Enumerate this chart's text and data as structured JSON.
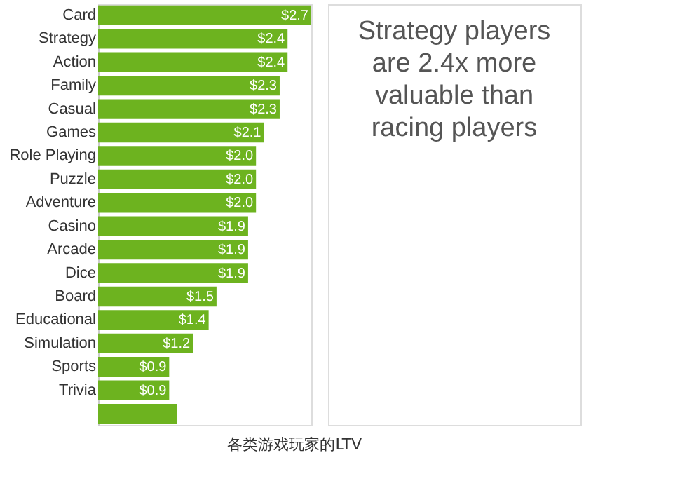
{
  "chart_data": {
    "type": "bar",
    "orientation": "horizontal",
    "categories": [
      "Card",
      "Strategy",
      "Action",
      "Family",
      "Casual",
      "Games",
      "Role Playing",
      "Puzzle",
      "Adventure",
      "Casino",
      "Arcade",
      "Dice",
      "Board",
      "Educational",
      "Simulation",
      "Sports",
      "Trivia",
      null
    ],
    "values": [
      2.7,
      2.4,
      2.4,
      2.3,
      2.3,
      2.1,
      2.0,
      2.0,
      2.0,
      1.9,
      1.9,
      1.9,
      1.5,
      1.4,
      1.2,
      0.9,
      0.9,
      1.0
    ],
    "value_labels": [
      "$2.7",
      "$2.4",
      "$2.4",
      "$2.3",
      "$2.3",
      "$2.1",
      "$2.0",
      "$2.0",
      "$2.0",
      "$1.9",
      "$1.9",
      "$1.9",
      "$1.5",
      "$1.4",
      "$1.2",
      "$0.9",
      "$0.9",
      null
    ],
    "color": "#6db31f",
    "tick_labels": "y",
    "grid": false,
    "annotations": [
      "Strategy players\nare 2.4x more\nvaluable than\nracing players",
      "各类游戏玩家的LTV"
    ]
  }
}
